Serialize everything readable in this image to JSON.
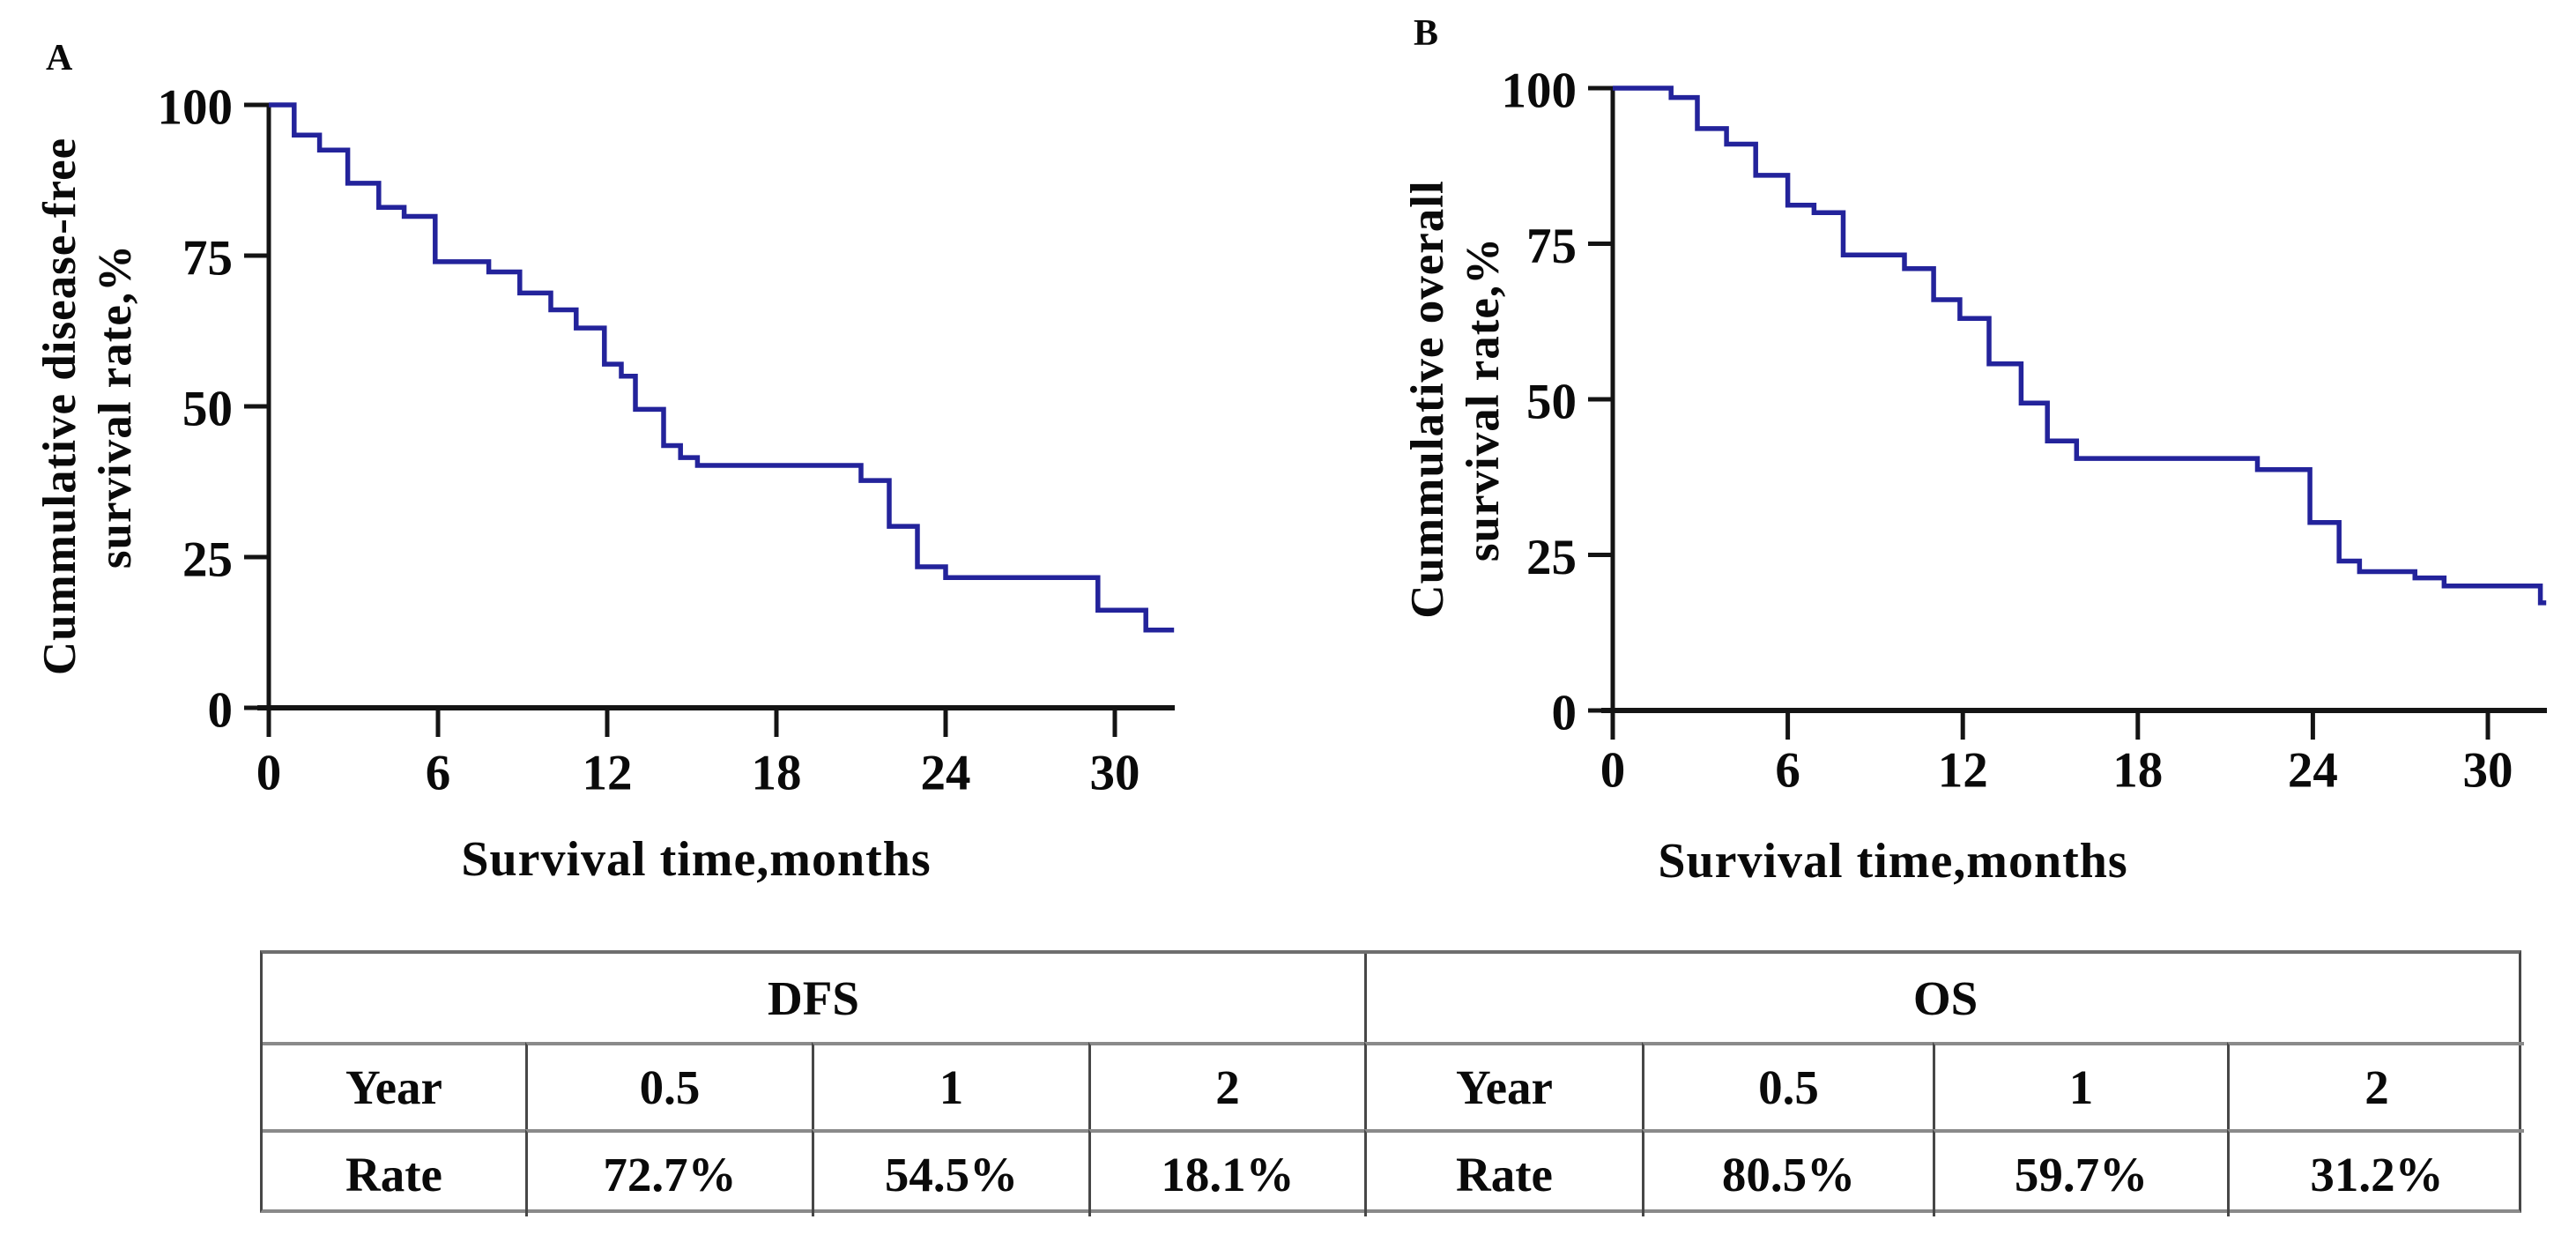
{
  "figure": {
    "panels": [
      {
        "label": "A",
        "y_axis_title_line1": "Cummulative disease-free",
        "y_axis_title_line2": "survival rate,%",
        "x_axis_title": "Survival time,months"
      },
      {
        "label": "B",
        "y_axis_title_line1": "Cummulative overall",
        "y_axis_title_line2": "survival rate,%",
        "x_axis_title": "Survival time,months"
      }
    ],
    "table": {
      "groups": [
        {
          "header": "DFS",
          "cells": [
            [
              "Year",
              "0.5",
              "1",
              "2"
            ],
            [
              "Rate",
              "72.7%",
              "54.5%",
              "18.1%"
            ]
          ]
        },
        {
          "header": "OS",
          "cells": [
            [
              "Year",
              "0.5",
              "1",
              "2"
            ],
            [
              "Rate",
              "80.5%",
              "59.7%",
              "31.2%"
            ]
          ]
        }
      ]
    }
  },
  "chart_data": [
    {
      "type": "line",
      "subtype": "kaplan_meier_step",
      "title": "A",
      "ylabel": "Cummulative disease-free survival rate,%",
      "xlabel": "Survival time,months",
      "xlim": [
        0,
        32.2
      ],
      "ylim": [
        0,
        100
      ],
      "x_ticks": [
        0,
        6,
        12,
        18,
        24,
        30
      ],
      "y_ticks": [
        0,
        25,
        50,
        75,
        100
      ],
      "grid": false,
      "legend": "none",
      "line_color": "#23239b",
      "steps": [
        [
          0,
          100
        ],
        [
          0.9,
          95
        ],
        [
          1.8,
          92.5
        ],
        [
          2.8,
          87
        ],
        [
          3.9,
          83
        ],
        [
          4.8,
          81.5
        ],
        [
          5.9,
          74
        ],
        [
          7.8,
          72.3
        ],
        [
          8.9,
          68.8
        ],
        [
          10,
          66
        ],
        [
          10.9,
          63
        ],
        [
          11.9,
          57
        ],
        [
          12.5,
          55
        ],
        [
          13,
          49.5
        ],
        [
          14,
          43.5
        ],
        [
          14.6,
          41.5
        ],
        [
          15.2,
          40.2
        ],
        [
          21,
          37.7
        ],
        [
          22,
          30.1
        ],
        [
          23,
          23.4
        ],
        [
          24,
          21.6
        ],
        [
          29.4,
          16.2
        ],
        [
          31.1,
          12.9
        ]
      ],
      "end_x": 32.1,
      "summary_points": {
        "0.5_year": "72.7%",
        "1_year": "54.5%",
        "2_year": "18.1%"
      }
    },
    {
      "type": "line",
      "subtype": "kaplan_meier_step",
      "title": "B",
      "ylabel": "Cummulative overall survival rate,%",
      "xlabel": "Survival time,months",
      "xlim": [
        0,
        32
      ],
      "ylim": [
        0,
        100
      ],
      "x_ticks": [
        0,
        6,
        12,
        18,
        24,
        30
      ],
      "y_ticks": [
        0,
        25,
        50,
        75,
        100
      ],
      "grid": false,
      "legend": "none",
      "line_color": "#23239b",
      "steps": [
        [
          0,
          100
        ],
        [
          2,
          98.5
        ],
        [
          2.9,
          93.5
        ],
        [
          3.9,
          91
        ],
        [
          4.9,
          86
        ],
        [
          6,
          81.2
        ],
        [
          6.9,
          80
        ],
        [
          7.9,
          73.2
        ],
        [
          10,
          71
        ],
        [
          11,
          66
        ],
        [
          11.9,
          63
        ],
        [
          12.9,
          55.7
        ],
        [
          14,
          49.4
        ],
        [
          14.9,
          43.3
        ],
        [
          15.9,
          40.5
        ],
        [
          22.1,
          38.7
        ],
        [
          23.9,
          30.2
        ],
        [
          24.9,
          24
        ],
        [
          25.6,
          22.3
        ],
        [
          27.5,
          21.3
        ],
        [
          28.5,
          20
        ],
        [
          31.8,
          17.3
        ]
      ],
      "end_x": 32,
      "summary_points": {
        "0.5_year": "80.5%",
        "1_year": "59.7%",
        "2_year": "31.2%"
      }
    },
    {
      "type": "table",
      "groups": [
        {
          "name": "DFS",
          "years": [
            "0.5",
            "1",
            "2"
          ],
          "rates": [
            "72.7%",
            "54.5%",
            "18.1%"
          ]
        },
        {
          "name": "OS",
          "years": [
            "0.5",
            "1",
            "2"
          ],
          "rates": [
            "80.5%",
            "59.7%",
            "31.2%"
          ]
        }
      ]
    }
  ],
  "colors": {
    "curve": "#23239b",
    "axis": "#141414",
    "text": "#0a0a0a",
    "table_rule_gray": "#8a8a8a",
    "table_rule_dark": "#474747",
    "background": "#ffffff"
  }
}
